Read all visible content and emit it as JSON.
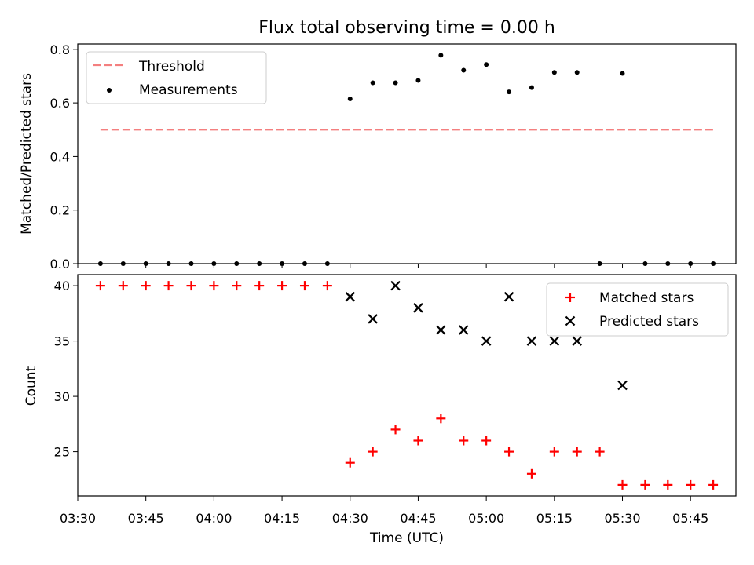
{
  "chart_data": [
    {
      "type": "scatter",
      "title": "Flux total observing time = 0.00 h",
      "xlabel": "",
      "ylabel": "Matched/Predicted stars",
      "ylim": [
        0,
        0.82
      ],
      "yticks": [
        "0.0",
        "0.2",
        "0.4",
        "0.6",
        "0.8"
      ],
      "ytick_values": [
        0,
        0.2,
        0.4,
        0.6,
        0.8
      ],
      "legend_position": "top-left",
      "threshold": {
        "name": "Threshold",
        "value": 0.5,
        "x_start": "03:35",
        "x_end": "05:50",
        "color": "#f47f7f"
      },
      "series": [
        {
          "name": "Measurements",
          "color": "#000000",
          "x": [
            "03:35",
            "03:40",
            "03:45",
            "03:50",
            "03:55",
            "04:00",
            "04:05",
            "04:10",
            "04:15",
            "04:20",
            "04:25",
            "04:30",
            "04:35",
            "04:40",
            "04:45",
            "04:50",
            "04:55",
            "05:00",
            "05:05",
            "05:10",
            "05:15",
            "05:20",
            "05:25",
            "05:30",
            "05:35",
            "05:40",
            "05:45",
            "05:50"
          ],
          "y": [
            0,
            0,
            0,
            0,
            0,
            0,
            0,
            0,
            0,
            0,
            0,
            0.615,
            0.675,
            0.675,
            0.684,
            0.778,
            0.722,
            0.743,
            0.641,
            0.657,
            0.714,
            0.714,
            0,
            0.71,
            0,
            0,
            0,
            0
          ]
        }
      ]
    },
    {
      "type": "scatter",
      "title": "",
      "xlabel": "Time (UTC)",
      "ylabel": "Count",
      "ylim": [
        21,
        41
      ],
      "yticks": [
        "25",
        "30",
        "35",
        "40"
      ],
      "ytick_values": [
        25,
        30,
        35,
        40
      ],
      "xlim": [
        "03:30",
        "05:55"
      ],
      "xticks": [
        "03:30",
        "03:45",
        "04:00",
        "04:15",
        "04:30",
        "04:45",
        "05:00",
        "05:15",
        "05:30",
        "05:45"
      ],
      "legend_position": "top-right",
      "series": [
        {
          "name": "Matched stars",
          "marker": "plus",
          "color": "#ff0000",
          "x": [
            "03:35",
            "03:40",
            "03:45",
            "03:50",
            "03:55",
            "04:00",
            "04:05",
            "04:10",
            "04:15",
            "04:20",
            "04:25",
            "04:30",
            "04:35",
            "04:40",
            "04:45",
            "04:50",
            "04:55",
            "05:00",
            "05:05",
            "05:10",
            "05:15",
            "05:20",
            "05:25",
            "05:30",
            "05:35",
            "05:40",
            "05:45",
            "05:50"
          ],
          "y": [
            40,
            40,
            40,
            40,
            40,
            40,
            40,
            40,
            40,
            40,
            40,
            24,
            25,
            27,
            26,
            28,
            26,
            26,
            25,
            23,
            25,
            25,
            25,
            22,
            22,
            22,
            22,
            22
          ]
        },
        {
          "name": "Predicted stars",
          "marker": "x",
          "color": "#000000",
          "x": [
            "04:30",
            "04:35",
            "04:40",
            "04:45",
            "04:50",
            "04:55",
            "05:00",
            "05:05",
            "05:10",
            "05:15",
            "05:20",
            "05:30"
          ],
          "y": [
            39,
            37,
            40,
            38,
            36,
            36,
            35,
            39,
            35,
            35,
            35,
            31
          ]
        }
      ]
    }
  ]
}
